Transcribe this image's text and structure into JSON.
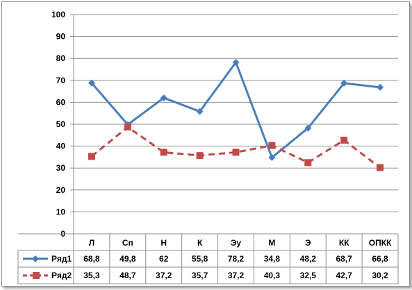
{
  "chart_data": {
    "type": "line",
    "categories": [
      "Л",
      "Сп",
      "Н",
      "К",
      "Эу",
      "М",
      "Э",
      "КК",
      "ОПКК"
    ],
    "ylim": [
      0,
      100
    ],
    "yticks": [
      0,
      10,
      20,
      30,
      40,
      50,
      60,
      70,
      80,
      90,
      100
    ],
    "grid": true,
    "legend": "data-table",
    "series": [
      {
        "name": "Ряд1",
        "values": [
          68.8,
          49.8,
          62,
          55.8,
          78.2,
          34.8,
          48.2,
          68.7,
          66.8
        ],
        "labels": [
          "68,8",
          "49,8",
          "62",
          "55,8",
          "78,2",
          "34,8",
          "48,2",
          "68,7",
          "66,8"
        ],
        "color": "#4a7ebb",
        "marker": "diamond",
        "dash": "solid"
      },
      {
        "name": "Ряд2",
        "values": [
          35.3,
          48.7,
          37.2,
          35.7,
          37.2,
          40.3,
          32.5,
          42.7,
          30.2
        ],
        "labels": [
          "35,3",
          "48,7",
          "37,2",
          "35,7",
          "37,2",
          "40,3",
          "32,5",
          "42,7",
          "30,2"
        ],
        "color": "#be4b48",
        "marker": "square",
        "dash": "dashed"
      }
    ]
  }
}
